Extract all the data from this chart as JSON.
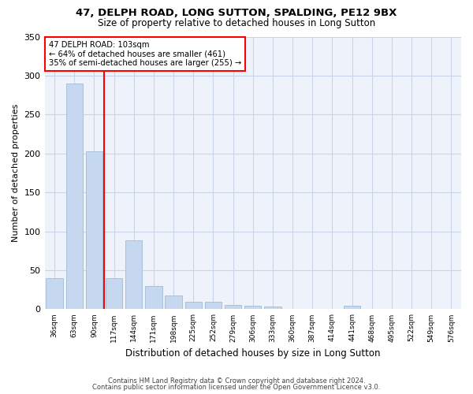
{
  "title_line1": "47, DELPH ROAD, LONG SUTTON, SPALDING, PE12 9BX",
  "title_line2": "Size of property relative to detached houses in Long Sutton",
  "xlabel": "Distribution of detached houses by size in Long Sutton",
  "ylabel": "Number of detached properties",
  "categories": [
    "36sqm",
    "63sqm",
    "90sqm",
    "117sqm",
    "144sqm",
    "171sqm",
    "198sqm",
    "225sqm",
    "252sqm",
    "279sqm",
    "306sqm",
    "333sqm",
    "360sqm",
    "387sqm",
    "414sqm",
    "441sqm",
    "468sqm",
    "495sqm",
    "522sqm",
    "549sqm",
    "576sqm"
  ],
  "values": [
    40,
    290,
    203,
    40,
    88,
    30,
    18,
    10,
    10,
    5,
    4,
    3,
    0,
    0,
    0,
    4,
    0,
    0,
    0,
    0,
    0
  ],
  "bar_color": "#c5d8f0",
  "bar_edge_color": "#a0bcd8",
  "grid_color": "#c8d4e8",
  "background_color": "#eef2fb",
  "red_line_x": 2.5,
  "annotation_line1": "47 DELPH ROAD: 103sqm",
  "annotation_line2": "← 64% of detached houses are smaller (461)",
  "annotation_line3": "35% of semi-detached houses are larger (255) →",
  "ylim": [
    0,
    350
  ],
  "yticks": [
    0,
    50,
    100,
    150,
    200,
    250,
    300,
    350
  ],
  "footnote_line1": "Contains HM Land Registry data © Crown copyright and database right 2024.",
  "footnote_line2": "Contains public sector information licensed under the Open Government Licence v3.0."
}
